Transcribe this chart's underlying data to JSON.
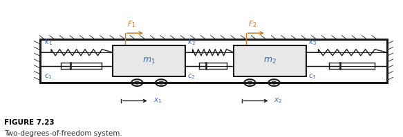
{
  "fig_width": 5.83,
  "fig_height": 1.99,
  "dpi": 100,
  "background_color": "#ffffff",
  "line_color": "#1a1a1a",
  "box_facecolor": "#e8e8e8",
  "box_edgecolor": "#1a1a1a",
  "label_color": "#3366bb",
  "force_color": "#cc7722",
  "spring_color": "#1a1a1a",
  "damper_color": "#1a1a1a",
  "figure_label": "FIGURE 7.23",
  "figure_caption": "Two-degrees-of-freedom system."
}
